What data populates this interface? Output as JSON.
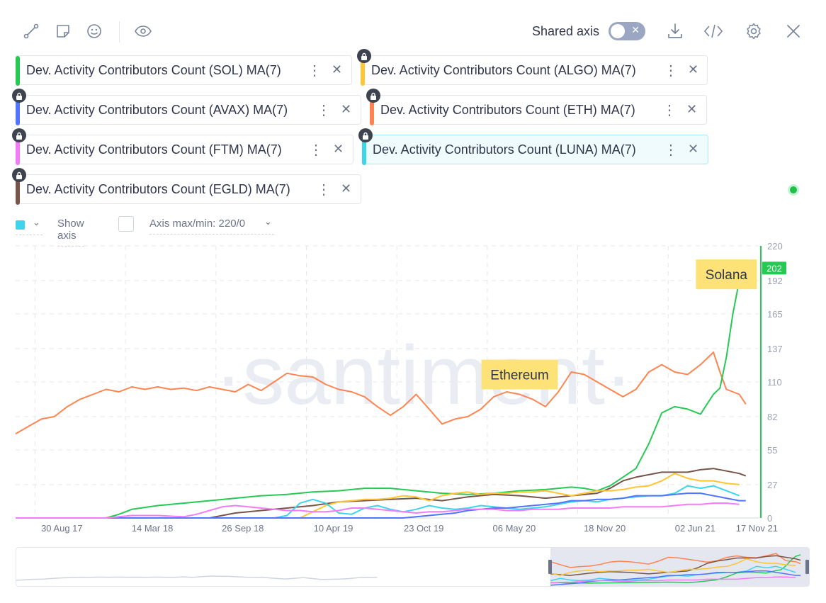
{
  "toolbar": {
    "shared_axis_label": "Shared axis",
    "icons": [
      "line-drawing-icon",
      "note-icon",
      "emoji-icon",
      "eye-icon",
      "download-icon",
      "embed-code-icon",
      "gear-icon",
      "close-icon"
    ]
  },
  "metrics": [
    {
      "label": "Dev. Activity Contributors Count (SOL) MA(7)",
      "color": "#26c953",
      "locked": false,
      "highlight": false
    },
    {
      "label": "Dev. Activity Contributors Count (ALGO) MA(7)",
      "color": "#ffc532",
      "locked": true,
      "highlight": false
    },
    {
      "label": "Dev. Activity Contributors Count (AVAX) MA(7)",
      "color": "#5275ff",
      "locked": true,
      "highlight": false
    },
    {
      "label": "Dev. Activity Contributors Count (ETH) MA(7)",
      "color": "#ff8450",
      "locked": true,
      "highlight": false
    },
    {
      "label": "Dev. Activity Contributors Count (FTM) MA(7)",
      "color": "#f47bf7",
      "locked": true,
      "highlight": false
    },
    {
      "label": "Dev. Activity Contributors Count (LUNA) MA(7)",
      "color": "#3ed4ec",
      "locked": true,
      "highlight": true
    },
    {
      "label": "Dev. Activity Contributors Count (EGLD) MA(7)",
      "color": "#785549",
      "locked": true,
      "highlight": false
    }
  ],
  "axis_settings": {
    "show_axis_label": "Show axis",
    "axis_range_label": "Axis max/min: 220/0",
    "swatch_color": "#3ed4ec"
  },
  "chart_data": {
    "type": "line",
    "title": "",
    "watermark": "·santiment·",
    "xlabel": "",
    "ylabel": "",
    "ylim": [
      0,
      220
    ],
    "y_ticks": [
      0,
      27,
      55,
      82,
      110,
      137,
      165,
      192,
      220
    ],
    "x_tick_labels": [
      "30 Aug 17",
      "14 Mar 18",
      "26 Sep 18",
      "10 Apr 19",
      "23 Oct 19",
      "06 May 20",
      "18 Nov 20",
      "02 Jun 21",
      "17 Nov 21"
    ],
    "x_tick_positions": [
      0.03,
      0.17,
      0.31,
      0.45,
      0.59,
      0.73,
      0.87,
      1.01,
      1.15
    ],
    "last_value_badge": "202",
    "annotations": [
      {
        "text": "Solana",
        "x": 1.1,
        "y": 197
      },
      {
        "text": "Ethereum",
        "x": 0.78,
        "y": 116
      }
    ],
    "x_domain": [
      0,
      1.15
    ],
    "series": [
      {
        "name": "ETH",
        "color": "#ff8450",
        "points": [
          [
            0,
            68
          ],
          [
            0.02,
            74
          ],
          [
            0.04,
            80
          ],
          [
            0.06,
            82
          ],
          [
            0.08,
            90
          ],
          [
            0.1,
            96
          ],
          [
            0.12,
            100
          ],
          [
            0.14,
            104
          ],
          [
            0.16,
            102
          ],
          [
            0.18,
            106
          ],
          [
            0.2,
            104
          ],
          [
            0.22,
            106
          ],
          [
            0.24,
            104
          ],
          [
            0.26,
            105
          ],
          [
            0.28,
            103
          ],
          [
            0.3,
            106
          ],
          [
            0.32,
            104
          ],
          [
            0.34,
            102
          ],
          [
            0.36,
            108
          ],
          [
            0.38,
            103
          ],
          [
            0.4,
            110
          ],
          [
            0.42,
            117
          ],
          [
            0.44,
            115
          ],
          [
            0.46,
            114
          ],
          [
            0.48,
            108
          ],
          [
            0.5,
            104
          ],
          [
            0.52,
            102
          ],
          [
            0.54,
            98
          ],
          [
            0.56,
            90
          ],
          [
            0.58,
            83
          ],
          [
            0.6,
            90
          ],
          [
            0.62,
            100
          ],
          [
            0.64,
            88
          ],
          [
            0.66,
            76
          ],
          [
            0.68,
            80
          ],
          [
            0.7,
            82
          ],
          [
            0.72,
            88
          ],
          [
            0.74,
            98
          ],
          [
            0.76,
            102
          ],
          [
            0.78,
            100
          ],
          [
            0.8,
            96
          ],
          [
            0.82,
            90
          ],
          [
            0.84,
            102
          ],
          [
            0.86,
            118
          ],
          [
            0.88,
            116
          ],
          [
            0.9,
            110
          ],
          [
            0.92,
            104
          ],
          [
            0.94,
            98
          ],
          [
            0.96,
            104
          ],
          [
            0.98,
            118
          ],
          [
            1.0,
            124
          ],
          [
            1.02,
            118
          ],
          [
            1.04,
            116
          ],
          [
            1.06,
            124
          ],
          [
            1.08,
            134
          ],
          [
            1.09,
            118
          ],
          [
            1.1,
            104
          ],
          [
            1.12,
            100
          ],
          [
            1.13,
            92
          ]
        ]
      },
      {
        "name": "SOL",
        "color": "#26c953",
        "points": [
          [
            0,
            0
          ],
          [
            0.14,
            0
          ],
          [
            0.16,
            3
          ],
          [
            0.18,
            7
          ],
          [
            0.22,
            10
          ],
          [
            0.26,
            12
          ],
          [
            0.3,
            14
          ],
          [
            0.34,
            16
          ],
          [
            0.38,
            18
          ],
          [
            0.42,
            19
          ],
          [
            0.46,
            21
          ],
          [
            0.5,
            22
          ],
          [
            0.54,
            24
          ],
          [
            0.58,
            24
          ],
          [
            0.62,
            22
          ],
          [
            0.66,
            20
          ],
          [
            0.7,
            19
          ],
          [
            0.74,
            20
          ],
          [
            0.78,
            22
          ],
          [
            0.82,
            23
          ],
          [
            0.86,
            25
          ],
          [
            0.88,
            24
          ],
          [
            0.9,
            22
          ],
          [
            0.92,
            26
          ],
          [
            0.94,
            33
          ],
          [
            0.96,
            40
          ],
          [
            0.98,
            60
          ],
          [
            1.0,
            85
          ],
          [
            1.02,
            90
          ],
          [
            1.04,
            88
          ],
          [
            1.06,
            84
          ],
          [
            1.08,
            100
          ],
          [
            1.09,
            105
          ],
          [
            1.1,
            130
          ],
          [
            1.11,
            165
          ],
          [
            1.12,
            192
          ],
          [
            1.13,
            202
          ]
        ]
      },
      {
        "name": "EGLD",
        "color": "#785549",
        "points": [
          [
            0,
            0
          ],
          [
            0.3,
            0
          ],
          [
            0.34,
            4
          ],
          [
            0.38,
            6
          ],
          [
            0.42,
            8
          ],
          [
            0.46,
            10
          ],
          [
            0.5,
            13
          ],
          [
            0.54,
            14
          ],
          [
            0.58,
            15
          ],
          [
            0.62,
            16
          ],
          [
            0.66,
            14
          ],
          [
            0.7,
            17
          ],
          [
            0.74,
            19
          ],
          [
            0.78,
            18
          ],
          [
            0.82,
            16
          ],
          [
            0.86,
            18
          ],
          [
            0.9,
            20
          ],
          [
            0.92,
            24
          ],
          [
            0.94,
            30
          ],
          [
            0.96,
            33
          ],
          [
            0.98,
            35
          ],
          [
            1.0,
            37
          ],
          [
            1.02,
            37
          ],
          [
            1.04,
            37
          ],
          [
            1.06,
            39
          ],
          [
            1.08,
            40
          ],
          [
            1.1,
            38
          ],
          [
            1.12,
            36
          ],
          [
            1.13,
            34
          ]
        ]
      },
      {
        "name": "ALGO",
        "color": "#ffc532",
        "points": [
          [
            0,
            0
          ],
          [
            0.44,
            0
          ],
          [
            0.46,
            5
          ],
          [
            0.48,
            10
          ],
          [
            0.5,
            13
          ],
          [
            0.52,
            14
          ],
          [
            0.54,
            15
          ],
          [
            0.56,
            15
          ],
          [
            0.58,
            16
          ],
          [
            0.6,
            18
          ],
          [
            0.62,
            17
          ],
          [
            0.64,
            14
          ],
          [
            0.66,
            18
          ],
          [
            0.68,
            20
          ],
          [
            0.7,
            21
          ],
          [
            0.72,
            19
          ],
          [
            0.74,
            20
          ],
          [
            0.76,
            20
          ],
          [
            0.78,
            21
          ],
          [
            0.8,
            21
          ],
          [
            0.82,
            22
          ],
          [
            0.84,
            20
          ],
          [
            0.86,
            18
          ],
          [
            0.88,
            20
          ],
          [
            0.9,
            22
          ],
          [
            0.92,
            22
          ],
          [
            0.94,
            23
          ],
          [
            0.96,
            25
          ],
          [
            0.98,
            26
          ],
          [
            1.0,
            30
          ],
          [
            1.02,
            36
          ],
          [
            1.04,
            32
          ],
          [
            1.06,
            30
          ],
          [
            1.08,
            30
          ],
          [
            1.1,
            28
          ],
          [
            1.12,
            27
          ]
        ]
      },
      {
        "name": "LUNA",
        "color": "#3ed4ec",
        "points": [
          [
            0,
            0
          ],
          [
            0.4,
            0
          ],
          [
            0.42,
            2
          ],
          [
            0.44,
            12
          ],
          [
            0.46,
            15
          ],
          [
            0.48,
            12
          ],
          [
            0.5,
            4
          ],
          [
            0.52,
            3
          ],
          [
            0.54,
            8
          ],
          [
            0.56,
            10
          ],
          [
            0.58,
            7
          ],
          [
            0.6,
            5
          ],
          [
            0.62,
            7
          ],
          [
            0.64,
            10
          ],
          [
            0.66,
            8
          ],
          [
            0.68,
            7
          ],
          [
            0.7,
            8
          ],
          [
            0.72,
            10
          ],
          [
            0.74,
            9
          ],
          [
            0.76,
            8
          ],
          [
            0.78,
            7
          ],
          [
            0.8,
            8
          ],
          [
            0.82,
            9
          ],
          [
            0.84,
            11
          ],
          [
            0.86,
            13
          ],
          [
            0.88,
            14
          ],
          [
            0.9,
            13
          ],
          [
            0.92,
            15
          ],
          [
            0.94,
            16
          ],
          [
            0.96,
            17
          ],
          [
            0.98,
            18
          ],
          [
            1.0,
            18
          ],
          [
            1.02,
            20
          ],
          [
            1.04,
            26
          ],
          [
            1.06,
            24
          ],
          [
            1.08,
            26
          ],
          [
            1.1,
            22
          ],
          [
            1.12,
            18
          ]
        ]
      },
      {
        "name": "AVAX",
        "color": "#5275ff",
        "points": [
          [
            0,
            0
          ],
          [
            0.6,
            0
          ],
          [
            0.62,
            1
          ],
          [
            0.64,
            2
          ],
          [
            0.66,
            3
          ],
          [
            0.68,
            4
          ],
          [
            0.7,
            6
          ],
          [
            0.72,
            7
          ],
          [
            0.74,
            8
          ],
          [
            0.76,
            8
          ],
          [
            0.78,
            9
          ],
          [
            0.8,
            10
          ],
          [
            0.82,
            11
          ],
          [
            0.84,
            12
          ],
          [
            0.86,
            14
          ],
          [
            0.88,
            14
          ],
          [
            0.9,
            15
          ],
          [
            0.92,
            15
          ],
          [
            0.94,
            16
          ],
          [
            0.96,
            18
          ],
          [
            0.98,
            18
          ],
          [
            1.0,
            18
          ],
          [
            1.02,
            19
          ],
          [
            1.04,
            20
          ],
          [
            1.06,
            20
          ],
          [
            1.08,
            18
          ],
          [
            1.1,
            16
          ],
          [
            1.12,
            14
          ],
          [
            1.13,
            14
          ]
        ]
      },
      {
        "name": "FTM",
        "color": "#f47bf7",
        "points": [
          [
            0,
            0
          ],
          [
            0.14,
            0
          ],
          [
            0.16,
            1
          ],
          [
            0.18,
            2
          ],
          [
            0.22,
            2
          ],
          [
            0.26,
            1
          ],
          [
            0.28,
            3
          ],
          [
            0.3,
            6
          ],
          [
            0.32,
            9
          ],
          [
            0.34,
            10
          ],
          [
            0.36,
            9
          ],
          [
            0.38,
            8
          ],
          [
            0.4,
            7
          ],
          [
            0.42,
            6
          ],
          [
            0.44,
            6
          ],
          [
            0.46,
            5
          ],
          [
            0.48,
            5
          ],
          [
            0.5,
            6
          ],
          [
            0.52,
            8
          ],
          [
            0.54,
            8
          ],
          [
            0.56,
            7
          ],
          [
            0.58,
            6
          ],
          [
            0.6,
            5
          ],
          [
            0.62,
            4
          ],
          [
            0.64,
            5
          ],
          [
            0.66,
            5
          ],
          [
            0.68,
            6
          ],
          [
            0.7,
            7
          ],
          [
            0.72,
            7
          ],
          [
            0.74,
            7
          ],
          [
            0.76,
            6
          ],
          [
            0.78,
            6
          ],
          [
            0.8,
            7
          ],
          [
            0.82,
            7
          ],
          [
            0.84,
            7
          ],
          [
            0.86,
            8
          ],
          [
            0.88,
            8
          ],
          [
            0.9,
            8
          ],
          [
            0.92,
            8
          ],
          [
            0.94,
            9
          ],
          [
            0.96,
            9
          ],
          [
            0.98,
            9
          ],
          [
            1.0,
            9
          ],
          [
            1.02,
            10
          ],
          [
            1.04,
            11
          ],
          [
            1.06,
            11
          ],
          [
            1.08,
            12
          ],
          [
            1.1,
            12
          ],
          [
            1.12,
            11
          ]
        ]
      }
    ]
  }
}
